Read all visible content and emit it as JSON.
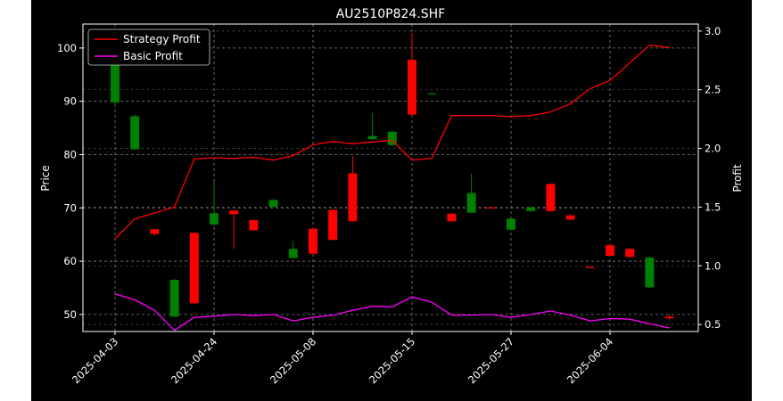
{
  "chart_data": {
    "type": "candlestick+line",
    "title": "AU2510P824.SHF",
    "ylabel_left": "Price",
    "ylabel_right": "Profit",
    "ylim_left": [
      46.8,
      104.5
    ],
    "ylim_right": [
      0.44,
      3.06
    ],
    "yticks_left": [
      50,
      60,
      70,
      80,
      90,
      100
    ],
    "yticks_right": [
      0.5,
      1.0,
      1.5,
      2.0,
      2.5,
      3.0
    ],
    "yticks_right_labels": [
      "0.5",
      "1.0",
      "1.5",
      "2.0",
      "2.5",
      "3.0"
    ],
    "xtick_labels": [
      "2025-04-03",
      "2025-04-24",
      "2025-05-08",
      "2025-05-15",
      "2025-05-27",
      "2025-06-04"
    ],
    "xtick_index": [
      0,
      5,
      10,
      15,
      20,
      25
    ],
    "grid": true,
    "legend_position": "top-left",
    "up_color": "#ff0000",
    "down_color": "#008000",
    "background": "#000000",
    "text_color": "#ffffff",
    "candles": [
      {
        "open": 97.0,
        "high": 99.5,
        "low": 89.5,
        "close": 89.8
      },
      {
        "open": 87.2,
        "high": 87.5,
        "low": 80.9,
        "close": 81.0
      },
      {
        "open": 65.1,
        "high": 66.0,
        "low": 64.8,
        "close": 66.0
      },
      {
        "open": 56.5,
        "high": 56.7,
        "low": 49.5,
        "close": 49.6
      },
      {
        "open": 52.1,
        "high": 65.4,
        "low": 52.0,
        "close": 65.3
      },
      {
        "open": 69.0,
        "high": 74.9,
        "low": 66.6,
        "close": 66.9
      },
      {
        "open": 68.8,
        "high": 69.5,
        "low": 62.3,
        "close": 69.5
      },
      {
        "open": 65.8,
        "high": 67.8,
        "low": 65.8,
        "close": 67.7
      },
      {
        "open": 71.5,
        "high": 71.7,
        "low": 70.1,
        "close": 70.2
      },
      {
        "open": 62.3,
        "high": 63.8,
        "low": 60.4,
        "close": 60.6
      },
      {
        "open": 61.4,
        "high": 66.2,
        "low": 61.3,
        "close": 66.1
      },
      {
        "open": 64.0,
        "high": 69.8,
        "low": 63.9,
        "close": 69.6
      },
      {
        "open": 67.5,
        "high": 79.7,
        "low": 67.4,
        "close": 76.5
      },
      {
        "open": 83.5,
        "high": 87.8,
        "low": 82.7,
        "close": 82.9
      },
      {
        "open": 84.3,
        "high": 84.5,
        "low": 81.6,
        "close": 81.8
      },
      {
        "open": 87.5,
        "high": 102.8,
        "low": 87.4,
        "close": 97.8
      },
      {
        "open": 91.5,
        "high": 91.6,
        "low": 91.3,
        "close": 91.4
      },
      {
        "open": 67.5,
        "high": 69.0,
        "low": 67.4,
        "close": 68.9
      },
      {
        "open": 72.8,
        "high": 76.4,
        "low": 69.0,
        "close": 69.1
      },
      {
        "open": 69.9,
        "high": 70.2,
        "low": 69.8,
        "close": 70.1
      },
      {
        "open": 68.0,
        "high": 68.0,
        "low": 65.8,
        "close": 65.9
      },
      {
        "open": 70.1,
        "high": 70.2,
        "low": 69.3,
        "close": 69.4
      },
      {
        "open": 69.4,
        "high": 74.6,
        "low": 69.3,
        "close": 74.5
      },
      {
        "open": 67.8,
        "high": 68.8,
        "low": 67.7,
        "close": 68.6
      },
      {
        "open": 58.8,
        "high": 58.9,
        "low": 58.7,
        "close": 58.9
      },
      {
        "open": 61.0,
        "high": 63.1,
        "low": 60.9,
        "close": 63.0
      },
      {
        "open": 60.8,
        "high": 62.4,
        "low": 60.7,
        "close": 62.3
      },
      {
        "open": 60.7,
        "high": 60.8,
        "low": 55.0,
        "close": 55.1
      },
      {
        "open": 49.3,
        "high": 50.0,
        "low": 49.0,
        "close": 49.6
      }
    ],
    "series": [
      {
        "name": "Strategy Profit",
        "color": "#ff0000",
        "values": [
          1.23,
          1.4,
          1.45,
          1.5,
          1.91,
          1.92,
          1.915,
          1.925,
          1.9,
          1.94,
          2.03,
          2.06,
          2.04,
          2.055,
          2.07,
          1.9,
          1.915,
          2.28,
          2.28,
          2.28,
          2.27,
          2.28,
          2.31,
          2.38,
          2.51,
          2.58,
          2.73,
          2.88,
          2.86
        ]
      },
      {
        "name": "Basic Profit",
        "color": "#ff00ff",
        "values": [
          0.76,
          0.71,
          0.62,
          0.45,
          0.56,
          0.57,
          0.585,
          0.575,
          0.585,
          0.53,
          0.56,
          0.58,
          0.62,
          0.655,
          0.65,
          0.735,
          0.69,
          0.58,
          0.58,
          0.585,
          0.56,
          0.585,
          0.615,
          0.58,
          0.53,
          0.55,
          0.545,
          0.505,
          0.47
        ]
      }
    ]
  }
}
